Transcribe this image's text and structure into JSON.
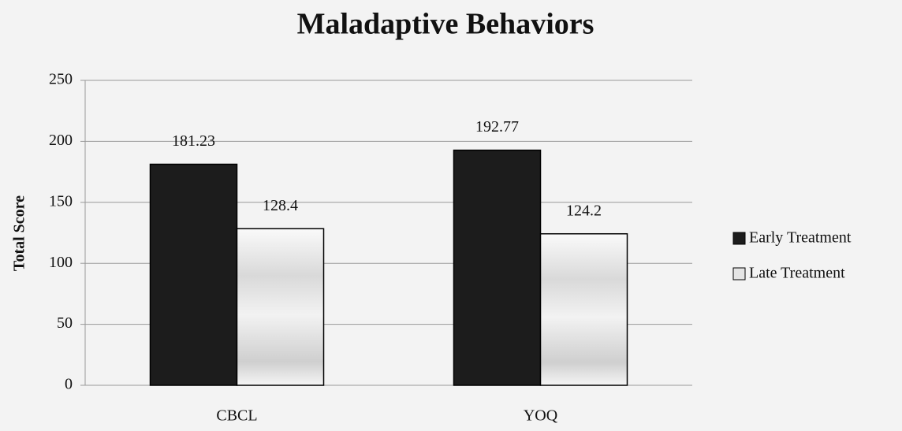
{
  "chart_data": {
    "type": "bar",
    "title": "Maladaptive Behaviors",
    "y_label": "Total Score",
    "categories": [
      "CBCL",
      "YOQ"
    ],
    "series": [
      {
        "name": "Early Treatment",
        "color": "#1c1c1c",
        "values": [
          181.23,
          192.77
        ]
      },
      {
        "name": "Late Treatment",
        "color": "#e4e4e4",
        "values": [
          128.4,
          124.2
        ]
      }
    ],
    "ylim": [
      0,
      250
    ],
    "yticks": [
      0,
      50,
      100,
      150,
      200,
      250
    ],
    "grid": true,
    "legend": "right"
  }
}
